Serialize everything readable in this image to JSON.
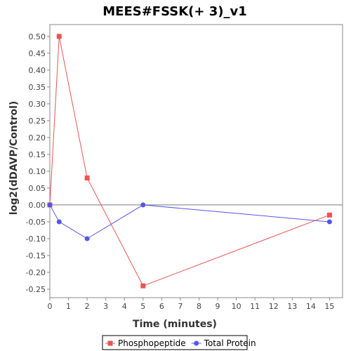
{
  "chart_data": {
    "type": "line",
    "title": "MEES#FSSK(+ 3)_v1",
    "xlabel": "Time (minutes)",
    "ylabel": "log2(dDAVP/Control)",
    "xlim": [
      0,
      15.7
    ],
    "ylim": [
      -0.275,
      0.535
    ],
    "x_ticks": [
      0,
      1,
      2,
      3,
      4,
      5,
      6,
      7,
      8,
      9,
      10,
      11,
      12,
      13,
      14,
      15
    ],
    "x_tick_labels": [
      "0",
      "1",
      "2",
      "3",
      "4",
      "5",
      "6",
      "7",
      "8",
      "9",
      "10",
      "11",
      "12",
      "13",
      "14",
      "15"
    ],
    "y_ticks": [
      0.5,
      0.45,
      0.4,
      0.35,
      0.3,
      0.25,
      0.2,
      0.15,
      0.1,
      0.05,
      0.0,
      -0.05,
      -0.1,
      -0.15,
      -0.2,
      -0.25
    ],
    "y_tick_labels": [
      "0.50",
      "0.45",
      "0.40",
      "0.35",
      "0.30",
      "0.25",
      "0.20",
      "0.15",
      "0.10",
      "0.05",
      "0.00",
      "-0.05",
      "-0.10",
      "-0.15",
      "-0.20",
      "-0.25"
    ],
    "grid": false,
    "zero_line": true,
    "legend_position": "bottom",
    "series": [
      {
        "name": "Phosphopeptide",
        "color": "#e85555",
        "marker": "square",
        "x": [
          0,
          0.5,
          2,
          5,
          15
        ],
        "y": [
          0.0,
          0.5,
          0.08,
          -0.24,
          -0.03
        ]
      },
      {
        "name": "Total Protein",
        "color": "#5555e8",
        "marker": "circle",
        "x": [
          0,
          0.5,
          2,
          5,
          15
        ],
        "y": [
          0.0,
          -0.05,
          -0.1,
          0.0,
          -0.05
        ]
      }
    ]
  }
}
